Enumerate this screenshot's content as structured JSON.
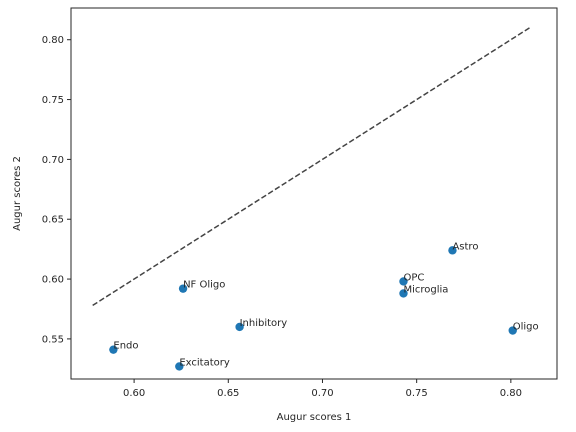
{
  "chart_data": {
    "type": "scatter",
    "xlabel": "Augur scores 1",
    "ylabel": "Augur scores 2",
    "xlim": [
      0.5665,
      0.8245
    ],
    "ylim": [
      0.5165,
      0.8265
    ],
    "xticks": [
      0.6,
      0.65,
      0.7,
      0.75,
      0.8
    ],
    "xtick_labels": [
      "0.60",
      "0.65",
      "0.70",
      "0.75",
      "0.80"
    ],
    "yticks": [
      0.55,
      0.6,
      0.65,
      0.7,
      0.75,
      0.8
    ],
    "ytick_labels": [
      "0.55",
      "0.60",
      "0.65",
      "0.70",
      "0.75",
      "0.80"
    ],
    "grid": false,
    "point_color": "#1f77b4",
    "reference_line": {
      "style": "dashed",
      "color": "#444444",
      "x": [
        0.578,
        0.811
      ],
      "y": [
        0.578,
        0.811
      ]
    },
    "points": [
      {
        "label": "Astro",
        "x": 0.769,
        "y": 0.624
      },
      {
        "label": "OPC",
        "x": 0.743,
        "y": 0.598
      },
      {
        "label": "Microglia",
        "x": 0.743,
        "y": 0.588
      },
      {
        "label": "Oligo",
        "x": 0.801,
        "y": 0.557
      },
      {
        "label": "NF Oligo",
        "x": 0.626,
        "y": 0.592
      },
      {
        "label": "Inhibitory",
        "x": 0.656,
        "y": 0.56
      },
      {
        "label": "Endo",
        "x": 0.589,
        "y": 0.541
      },
      {
        "label": "Excitatory",
        "x": 0.624,
        "y": 0.527
      }
    ]
  }
}
